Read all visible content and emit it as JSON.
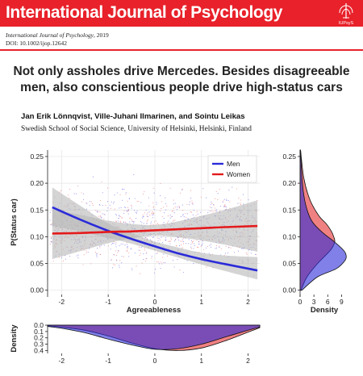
{
  "journal": {
    "name": "International Journal of Psychology",
    "citation_journal": "International Journal of Psychology",
    "citation_year": ", 2019",
    "doi": "DOI: 10.1002/ijop.12642",
    "logo_text": "IUPsyS",
    "banner_color": "#e8212a"
  },
  "paper": {
    "title_line1": "Not only assholes drive Mercedes. Besides disagreeable",
    "title_line2": "men, also conscientious people drive high-status cars",
    "authors": "Jan Erik Lönnqvist, Ville-Juhani Ilmarinen, and Sointu Leikas",
    "affiliation": "Swedish School of Social Science, University of Helsinki, Helsinki, Finland"
  },
  "colors": {
    "men": "#2b2bd9",
    "women": "#e41a1c",
    "overlap": "#8b1a4b",
    "band": "#b8b8b8"
  },
  "chart_data": [
    {
      "type": "scatter",
      "xlabel": "Agreeableness",
      "ylabel": "P(Status car)",
      "xlim": [
        -2.3,
        2.25
      ],
      "ylim": [
        -0.008,
        0.262
      ],
      "xticks": [
        -2,
        -1,
        0,
        1,
        2
      ],
      "yticks": [
        "0.00",
        "0.05",
        "0.10",
        "0.15",
        "0.20",
        "0.25"
      ],
      "grid": true,
      "legend_position": "top-right",
      "series": [
        {
          "name": "Men",
          "x": [
            -2.2,
            -1.6,
            -1.0,
            -0.5,
            0,
            0.5,
            1.0,
            1.5,
            2.2
          ],
          "y": [
            0.155,
            0.132,
            0.111,
            0.096,
            0.082,
            0.069,
            0.058,
            0.049,
            0.037
          ],
          "band_low": [
            0.12,
            0.11,
            0.098,
            0.087,
            0.074,
            0.061,
            0.048,
            0.036,
            0.02
          ],
          "band_high": [
            0.192,
            0.158,
            0.125,
            0.107,
            0.091,
            0.08,
            0.07,
            0.065,
            0.062
          ]
        },
        {
          "name": "Women",
          "x": [
            -2.2,
            -1.6,
            -1.0,
            -0.5,
            0,
            0.5,
            1.0,
            1.5,
            2.2
          ],
          "y": [
            0.106,
            0.107,
            0.109,
            0.11,
            0.112,
            0.114,
            0.116,
            0.118,
            0.12
          ],
          "band_low": [
            0.058,
            0.073,
            0.088,
            0.097,
            0.102,
            0.099,
            0.093,
            0.085,
            0.072
          ],
          "band_high": [
            0.15,
            0.141,
            0.13,
            0.124,
            0.122,
            0.129,
            0.139,
            0.15,
            0.168
          ]
        }
      ]
    },
    {
      "type": "area",
      "orientation": "horizontal",
      "xlabel": "Density",
      "xticks": [
        0,
        3,
        6,
        9
      ],
      "ylim": [
        -0.008,
        0.262
      ],
      "series": [
        {
          "name": "Men",
          "y": [
            0.0,
            0.025,
            0.04,
            0.055,
            0.065,
            0.075,
            0.09,
            0.11,
            0.13,
            0.16,
            0.2,
            0.262
          ],
          "density": [
            0.4,
            3.8,
            7.8,
            9.7,
            10.0,
            9.4,
            7.5,
            4.6,
            2.5,
            1.2,
            0.5,
            0.1
          ]
        },
        {
          "name": "Women",
          "y": [
            0.0,
            0.025,
            0.05,
            0.075,
            0.09,
            0.1,
            0.11,
            0.125,
            0.14,
            0.17,
            0.21,
            0.262
          ],
          "density": [
            0.2,
            1.5,
            3.8,
            6.6,
            7.5,
            7.3,
            6.8,
            5.6,
            4.0,
            2.1,
            0.8,
            0.1
          ]
        }
      ]
    },
    {
      "type": "area",
      "orientation": "vertical-inverted",
      "ylabel": "Density",
      "xlim": [
        -2.3,
        2.25
      ],
      "xticks": [
        -2,
        -1,
        0,
        1,
        2
      ],
      "yticks": [
        "0.0",
        "0.1",
        "0.2",
        "0.3",
        "0.4"
      ],
      "ylim": [
        0,
        0.42
      ],
      "series": [
        {
          "name": "Men",
          "x": [
            -2.3,
            -2.0,
            -1.5,
            -1.0,
            -0.5,
            0,
            0.5,
            1.0,
            1.5,
            2.0,
            2.25
          ],
          "density": [
            0.02,
            0.05,
            0.12,
            0.22,
            0.31,
            0.38,
            0.37,
            0.3,
            0.19,
            0.08,
            0.03
          ]
        },
        {
          "name": "Women",
          "x": [
            -2.3,
            -2.0,
            -1.5,
            -1.0,
            -0.5,
            0,
            0.5,
            1.0,
            1.5,
            2.0,
            2.25
          ],
          "density": [
            0.01,
            0.03,
            0.08,
            0.17,
            0.28,
            0.37,
            0.4,
            0.36,
            0.25,
            0.11,
            0.04
          ]
        }
      ]
    }
  ]
}
